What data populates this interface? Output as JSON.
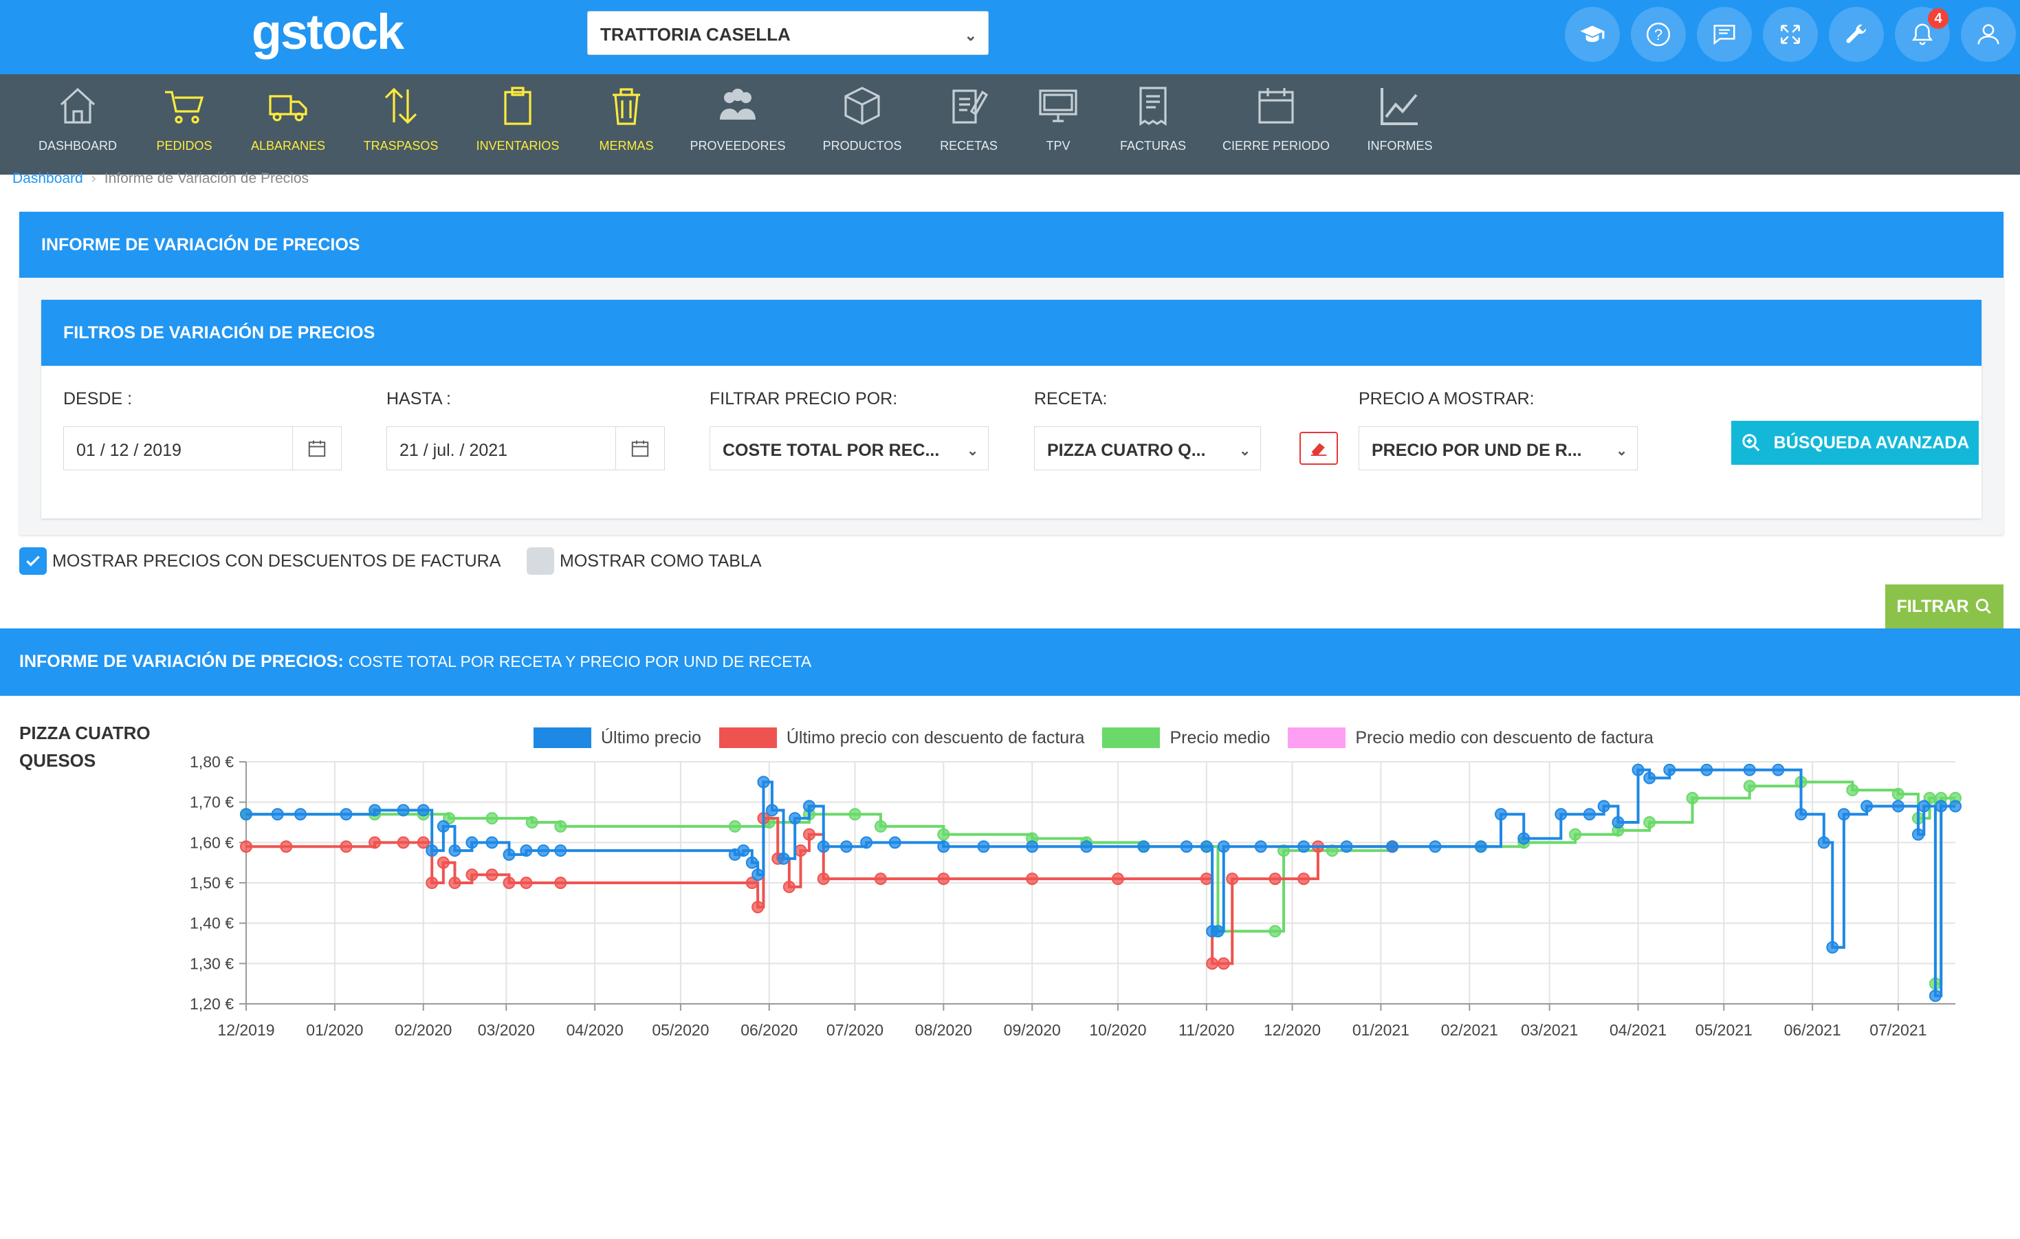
{
  "app": {
    "logo": "gstock",
    "restaurant": "TRATTORIA CASELLA",
    "notification_count": "4"
  },
  "top_icons": [
    "graduation-cap-icon",
    "help-icon",
    "chat-icon",
    "expand-icon",
    "wrench-icon",
    "bell-icon",
    "user-icon"
  ],
  "modules": [
    {
      "label": "DASHBOARD",
      "icon": "home-icon",
      "highlighted": false
    },
    {
      "label": "PEDIDOS",
      "icon": "cart-icon",
      "highlighted": true
    },
    {
      "label": "ALBARANES",
      "icon": "truck-icon",
      "highlighted": true
    },
    {
      "label": "TRASPASOS",
      "icon": "transfer-icon",
      "highlighted": true
    },
    {
      "label": "INVENTARIOS",
      "icon": "clipboard-icon",
      "highlighted": true
    },
    {
      "label": "MERMAS",
      "icon": "trash-icon",
      "highlighted": true
    },
    {
      "label": "PROVEEDORES",
      "icon": "people-icon",
      "highlighted": false
    },
    {
      "label": "PRODUCTOS",
      "icon": "box-icon",
      "highlighted": false
    },
    {
      "label": "RECETAS",
      "icon": "recipe-icon",
      "highlighted": false
    },
    {
      "label": "TPV",
      "icon": "monitor-icon",
      "highlighted": false
    },
    {
      "label": "FACTURAS",
      "icon": "invoice-icon",
      "highlighted": false
    },
    {
      "label": "CIERRE PERIODO",
      "icon": "calendar-icon",
      "highlighted": false
    },
    {
      "label": "INFORMES",
      "icon": "chart-icon",
      "highlighted": false
    }
  ],
  "breadcrumb": {
    "home": "Dashboard",
    "current": "Informe de Variación de Precios"
  },
  "panel": {
    "title": "INFORME DE VARIACIÓN DE PRECIOS"
  },
  "filters": {
    "title": "FILTROS DE VARIACIÓN DE PRECIOS",
    "desde_label": "DESDE :",
    "desde_value": "01 / 12 / 2019",
    "hasta_label": "HASTA :",
    "hasta_value": "21 / jul. / 2021",
    "filtrar_label": "FILTRAR PRECIO POR:",
    "filtrar_value": "COSTE TOTAL POR REC...",
    "receta_label": "RECETA:",
    "receta_value": "PIZZA CUATRO Q...",
    "precio_label": "PRECIO A MOSTRAR:",
    "precio_value": "PRECIO POR UND DE R...",
    "advanced_button": "BÚSQUEDA AVANZADA"
  },
  "options": {
    "show_discounts_label": "MOSTRAR PRECIOS CON DESCUENTOS DE FACTURA",
    "show_discounts_checked": true,
    "show_table_label": "MOSTRAR COMO TABLA",
    "show_table_checked": false,
    "filter_button": "FILTRAR"
  },
  "report": {
    "title": "INFORME DE VARIACIÓN DE PRECIOS:",
    "subtitle": "COSTE TOTAL POR RECETA Y PRECIO POR UND DE RECETA",
    "recipe": "PIZZA CUATRO QUESOS"
  },
  "colors": {
    "primary": "#2196f3",
    "nav": "#475a66",
    "accent_yellow": "#ffeb3b",
    "cyan_button": "#13b8d9",
    "green_button": "#8bc34a"
  },
  "chart_data": {
    "type": "line",
    "x_ticks": [
      "12/2019",
      "01/2020",
      "02/2020",
      "03/2020",
      "04/2020",
      "05/2020",
      "06/2020",
      "07/2020",
      "08/2020",
      "09/2020",
      "10/2020",
      "11/2020",
      "12/2020",
      "01/2021",
      "02/2021",
      "03/2021",
      "04/2021",
      "05/2021",
      "06/2021",
      "07/2021"
    ],
    "y_ticks": [
      "1,20 €",
      "1,30 €",
      "1,40 €",
      "1,50 €",
      "1,60 €",
      "1,70 €",
      "1,80 €"
    ],
    "ylim": [
      1.2,
      1.8
    ],
    "xlim": [
      "2019-12-01",
      "2021-07-21"
    ],
    "grid": true,
    "legend_position": "top",
    "series": [
      {
        "name": "Último precio",
        "color": "#1e88e5",
        "points": [
          [
            "2019-12-01",
            1.67
          ],
          [
            "2019-12-12",
            1.67
          ],
          [
            "2019-12-20",
            1.67
          ],
          [
            "2020-01-05",
            1.67
          ],
          [
            "2020-01-15",
            1.68
          ],
          [
            "2020-01-25",
            1.68
          ],
          [
            "2020-02-01",
            1.68
          ],
          [
            "2020-02-04",
            1.58
          ],
          [
            "2020-02-08",
            1.64
          ],
          [
            "2020-02-12",
            1.58
          ],
          [
            "2020-02-18",
            1.6
          ],
          [
            "2020-02-25",
            1.6
          ],
          [
            "2020-03-02",
            1.57
          ],
          [
            "2020-03-08",
            1.58
          ],
          [
            "2020-03-14",
            1.58
          ],
          [
            "2020-03-20",
            1.58
          ],
          [
            "2020-05-20",
            1.57
          ],
          [
            "2020-05-23",
            1.58
          ],
          [
            "2020-05-26",
            1.55
          ],
          [
            "2020-05-28",
            1.52
          ],
          [
            "2020-05-30",
            1.75
          ],
          [
            "2020-06-02",
            1.68
          ],
          [
            "2020-06-06",
            1.56
          ],
          [
            "2020-06-10",
            1.66
          ],
          [
            "2020-06-15",
            1.69
          ],
          [
            "2020-06-20",
            1.59
          ],
          [
            "2020-06-28",
            1.59
          ],
          [
            "2020-07-05",
            1.6
          ],
          [
            "2020-07-15",
            1.6
          ],
          [
            "2020-08-01",
            1.59
          ],
          [
            "2020-08-15",
            1.59
          ],
          [
            "2020-09-01",
            1.59
          ],
          [
            "2020-09-20",
            1.59
          ],
          [
            "2020-10-10",
            1.59
          ],
          [
            "2020-10-25",
            1.59
          ],
          [
            "2020-11-01",
            1.59
          ],
          [
            "2020-11-03",
            1.38
          ],
          [
            "2020-11-05",
            1.38
          ],
          [
            "2020-11-07",
            1.59
          ],
          [
            "2020-11-20",
            1.59
          ],
          [
            "2020-12-05",
            1.59
          ],
          [
            "2020-12-20",
            1.59
          ],
          [
            "2021-01-05",
            1.59
          ],
          [
            "2021-01-20",
            1.59
          ],
          [
            "2021-02-05",
            1.59
          ],
          [
            "2021-02-12",
            1.67
          ],
          [
            "2021-02-20",
            1.61
          ],
          [
            "2021-03-05",
            1.67
          ],
          [
            "2021-03-15",
            1.67
          ],
          [
            "2021-03-20",
            1.69
          ],
          [
            "2021-03-25",
            1.65
          ],
          [
            "2021-04-01",
            1.78
          ],
          [
            "2021-04-05",
            1.76
          ],
          [
            "2021-04-12",
            1.78
          ],
          [
            "2021-04-25",
            1.78
          ],
          [
            "2021-05-10",
            1.78
          ],
          [
            "2021-05-20",
            1.78
          ],
          [
            "2021-05-28",
            1.67
          ],
          [
            "2021-06-05",
            1.6
          ],
          [
            "2021-06-08",
            1.34
          ],
          [
            "2021-06-12",
            1.67
          ],
          [
            "2021-06-20",
            1.69
          ],
          [
            "2021-07-01",
            1.69
          ],
          [
            "2021-07-08",
            1.62
          ],
          [
            "2021-07-10",
            1.69
          ],
          [
            "2021-07-14",
            1.22
          ],
          [
            "2021-07-16",
            1.69
          ],
          [
            "2021-07-21",
            1.69
          ]
        ]
      },
      {
        "name": "Último precio con descuento de factura",
        "color": "#ef5350",
        "points": [
          [
            "2019-12-01",
            1.59
          ],
          [
            "2019-12-15",
            1.59
          ],
          [
            "2020-01-05",
            1.59
          ],
          [
            "2020-01-15",
            1.6
          ],
          [
            "2020-01-25",
            1.6
          ],
          [
            "2020-02-01",
            1.6
          ],
          [
            "2020-02-04",
            1.5
          ],
          [
            "2020-02-08",
            1.55
          ],
          [
            "2020-02-12",
            1.5
          ],
          [
            "2020-02-18",
            1.52
          ],
          [
            "2020-02-25",
            1.52
          ],
          [
            "2020-03-02",
            1.5
          ],
          [
            "2020-03-08",
            1.5
          ],
          [
            "2020-03-20",
            1.5
          ],
          [
            "2020-05-26",
            1.5
          ],
          [
            "2020-05-28",
            1.44
          ],
          [
            "2020-05-30",
            1.66
          ],
          [
            "2020-06-04",
            1.56
          ],
          [
            "2020-06-08",
            1.49
          ],
          [
            "2020-06-12",
            1.58
          ],
          [
            "2020-06-15",
            1.62
          ],
          [
            "2020-06-20",
            1.51
          ],
          [
            "2020-07-10",
            1.51
          ],
          [
            "2020-08-01",
            1.51
          ],
          [
            "2020-09-01",
            1.51
          ],
          [
            "2020-10-01",
            1.51
          ],
          [
            "2020-11-01",
            1.51
          ],
          [
            "2020-11-03",
            1.3
          ],
          [
            "2020-11-07",
            1.3
          ],
          [
            "2020-11-10",
            1.51
          ],
          [
            "2020-11-25",
            1.51
          ],
          [
            "2020-12-05",
            1.51
          ],
          [
            "2020-12-10",
            1.59
          ],
          [
            "2021-01-05",
            1.59
          ]
        ]
      },
      {
        "name": "Precio medio",
        "color": "#6ad96a",
        "points": [
          [
            "2019-12-01",
            1.67
          ],
          [
            "2020-01-15",
            1.67
          ],
          [
            "2020-02-01",
            1.67
          ],
          [
            "2020-02-10",
            1.66
          ],
          [
            "2020-02-25",
            1.66
          ],
          [
            "2020-03-10",
            1.65
          ],
          [
            "2020-03-20",
            1.64
          ],
          [
            "2020-05-20",
            1.64
          ],
          [
            "2020-06-01",
            1.65
          ],
          [
            "2020-06-15",
            1.67
          ],
          [
            "2020-07-01",
            1.67
          ],
          [
            "2020-07-10",
            1.64
          ],
          [
            "2020-08-01",
            1.62
          ],
          [
            "2020-09-01",
            1.61
          ],
          [
            "2020-09-20",
            1.6
          ],
          [
            "2020-10-10",
            1.59
          ],
          [
            "2020-11-01",
            1.59
          ],
          [
            "2020-11-05",
            1.38
          ],
          [
            "2020-11-25",
            1.38
          ],
          [
            "2020-11-28",
            1.58
          ],
          [
            "2020-12-15",
            1.58
          ],
          [
            "2021-01-05",
            1.59
          ],
          [
            "2021-02-05",
            1.59
          ],
          [
            "2021-02-20",
            1.6
          ],
          [
            "2021-03-10",
            1.62
          ],
          [
            "2021-03-25",
            1.63
          ],
          [
            "2021-04-05",
            1.65
          ],
          [
            "2021-04-20",
            1.71
          ],
          [
            "2021-05-10",
            1.74
          ],
          [
            "2021-05-28",
            1.75
          ],
          [
            "2021-06-15",
            1.73
          ],
          [
            "2021-07-01",
            1.72
          ],
          [
            "2021-07-08",
            1.66
          ],
          [
            "2021-07-12",
            1.71
          ],
          [
            "2021-07-14",
            1.25
          ],
          [
            "2021-07-16",
            1.71
          ],
          [
            "2021-07-21",
            1.71
          ]
        ]
      },
      {
        "name": "Precio medio con descuento de factura",
        "color": "#ff9ff3",
        "points": []
      }
    ]
  }
}
